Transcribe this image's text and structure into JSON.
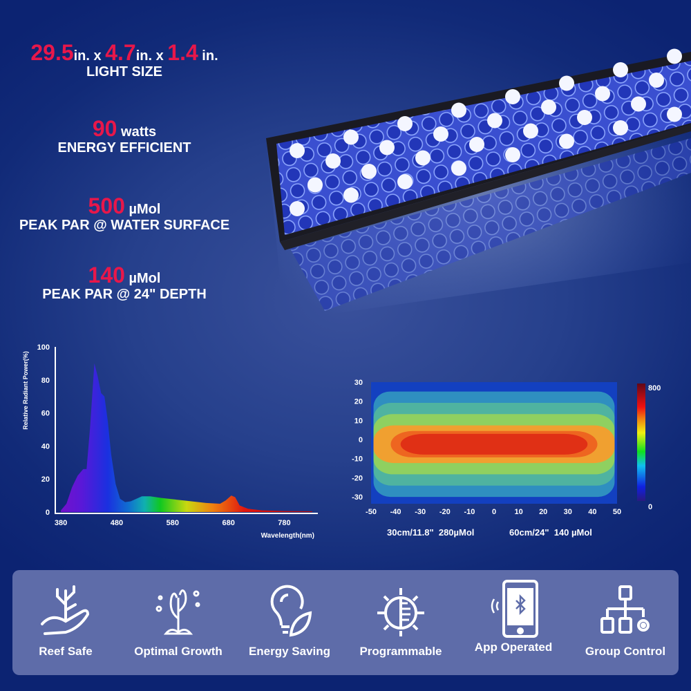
{
  "specs": {
    "size": {
      "d1": "29.5",
      "u1": "in. x ",
      "d2": "4.7",
      "u2": "in. x ",
      "d3": "1.4",
      "u3": " in.",
      "label": "LIGHT SIZE"
    },
    "power": {
      "value": "90",
      "unit": " watts",
      "label": "ENERGY EFFICIENT"
    },
    "par_surface": {
      "value": "500",
      "unit": " µMol",
      "label": "PEAK PAR @ WATER SURFACE"
    },
    "par_depth": {
      "value": "140",
      "unit": " µMol",
      "label": "PEAK PAR @ 24\" DEPTH"
    }
  },
  "colors": {
    "accent": "#e8174a",
    "feature_bar": "#5e6ca9"
  },
  "chart_data": [
    {
      "type": "area",
      "xlabel": "Wavelength(nm)",
      "ylabel": "Relative Radiant Power(%)",
      "xticks": [
        380,
        480,
        580,
        680,
        780
      ],
      "yticks": [
        0,
        20,
        40,
        60,
        80,
        100
      ],
      "xlim": [
        370,
        840
      ],
      "ylim": [
        0,
        100
      ],
      "grid": false,
      "x": [
        380,
        390,
        400,
        410,
        420,
        426,
        432,
        440,
        446,
        452,
        458,
        464,
        470,
        478,
        486,
        495,
        505,
        515,
        525,
        540,
        560,
        600,
        640,
        665,
        675,
        685,
        692,
        700,
        715,
        740,
        780,
        830
      ],
      "y": [
        1,
        5,
        15,
        22,
        26,
        26,
        50,
        90,
        82,
        72,
        70,
        55,
        35,
        17,
        8,
        6,
        6.5,
        8,
        9.5,
        9.5,
        8.5,
        7,
        5.5,
        5,
        7,
        10,
        9,
        4,
        2,
        1,
        0.6,
        0.4
      ]
    },
    {
      "type": "heatmap",
      "xticks": [
        -50,
        -40,
        -30,
        -20,
        -10,
        0,
        10,
        20,
        30,
        40,
        50
      ],
      "yticks": [
        30,
        20,
        10,
        0,
        -10,
        -20,
        -30
      ],
      "xlim": [
        -50,
        50
      ],
      "ylim": [
        -35,
        30
      ],
      "colorbar": {
        "min": 0,
        "max": 800,
        "labels": [
          "800",
          "0"
        ]
      },
      "contours": [
        {
          "color": "#1340c0",
          "hx": 50,
          "hy": 35
        },
        {
          "color": "#2f8fc0",
          "hx": 49,
          "hy": 28
        },
        {
          "color": "#4fb3a0",
          "hx": 49,
          "hy": 22
        },
        {
          "color": "#8fd060",
          "hx": 49,
          "hy": 16
        },
        {
          "color": "#f0a030",
          "hx": 49,
          "hy": 10
        },
        {
          "color": "#ee6520",
          "hx": 42,
          "hy": 7
        },
        {
          "color": "#e03015",
          "hx": 38,
          "hy": 5.5
        }
      ],
      "annotations": [
        "30cm/11.8\"  280µMol",
        "60cm/24\"  140 µMol"
      ]
    }
  ],
  "features": [
    {
      "icon": "coral-hand-icon",
      "label": "Reef Safe"
    },
    {
      "icon": "seaweed-icon",
      "label": "Optimal Growth"
    },
    {
      "icon": "bulb-leaf-icon",
      "label": "Energy Saving"
    },
    {
      "icon": "sun-dial-icon",
      "label": "Programmable"
    },
    {
      "icon": "phone-bluetooth-icon",
      "label": "App Operated"
    },
    {
      "icon": "network-icon",
      "label": "Group Control"
    }
  ]
}
